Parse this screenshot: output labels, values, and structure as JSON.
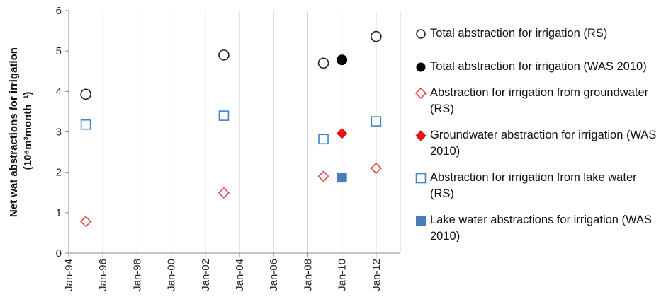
{
  "chart_data": {
    "type": "scatter",
    "ylabel_line1": "Net wat abstractions  for irrigation",
    "ylabel_line2": "(10⁶m³month⁻¹)",
    "ylim": [
      0,
      6
    ],
    "yticks": [
      0,
      1,
      2,
      3,
      4,
      5,
      6
    ],
    "xlim": [
      "1994-01",
      "2013-06"
    ],
    "xticks": [
      {
        "date": "1994-01",
        "label": "Jan-94"
      },
      {
        "date": "1996-01",
        "label": "Jan-96"
      },
      {
        "date": "1998-01",
        "label": "Jan-98"
      },
      {
        "date": "2000-01",
        "label": "Jan-00"
      },
      {
        "date": "2002-01",
        "label": "Jan-02"
      },
      {
        "date": "2004-01",
        "label": "Jan-04"
      },
      {
        "date": "2006-01",
        "label": "Jan-06"
      },
      {
        "date": "2008-01",
        "label": "Jan-08"
      },
      {
        "date": "2010-01",
        "label": "Jan-10"
      },
      {
        "date": "2012-01",
        "label": "Jan-12"
      }
    ],
    "grid": "vertical",
    "legend_position": "right",
    "series": [
      {
        "name": "Total abstraction for irrigation (RS)",
        "marker": "circle-open",
        "color": "#222222",
        "points": [
          {
            "x": "1995-01",
            "y": 3.93
          },
          {
            "x": "2003-02",
            "y": 4.9
          },
          {
            "x": "2008-12",
            "y": 4.7
          },
          {
            "x": "2012-01",
            "y": 5.36
          }
        ]
      },
      {
        "name": "Total abstraction for irrigation (WAS 2010)",
        "marker": "circle-filled",
        "color": "#000000",
        "points": [
          {
            "x": "2010-01",
            "y": 4.78
          }
        ]
      },
      {
        "name": "Abstraction for irrigation from groundwater (RS)",
        "marker": "diamond-open",
        "color": "#e8474a",
        "points": [
          {
            "x": "1995-01",
            "y": 0.78
          },
          {
            "x": "2003-02",
            "y": 1.49
          },
          {
            "x": "2008-12",
            "y": 1.9
          },
          {
            "x": "2012-01",
            "y": 2.1
          }
        ]
      },
      {
        "name": "Groundwater abstraction for irrigation (WAS 2010)",
        "marker": "diamond-filled",
        "color": "#e5141b",
        "points": [
          {
            "x": "2010-01",
            "y": 2.96
          }
        ]
      },
      {
        "name": "Abstraction for irrigation from lake water (RS)",
        "marker": "square-open",
        "color": "#3d84c6",
        "points": [
          {
            "x": "1995-01",
            "y": 3.18
          },
          {
            "x": "2003-02",
            "y": 3.4
          },
          {
            "x": "2008-12",
            "y": 2.82
          },
          {
            "x": "2012-01",
            "y": 3.26
          }
        ]
      },
      {
        "name": "Lake water abstractions for irrigation (WAS 2010)",
        "marker": "square-filled",
        "color": "#4a7ebb",
        "points": [
          {
            "x": "2010-01",
            "y": 1.87
          }
        ]
      }
    ]
  }
}
